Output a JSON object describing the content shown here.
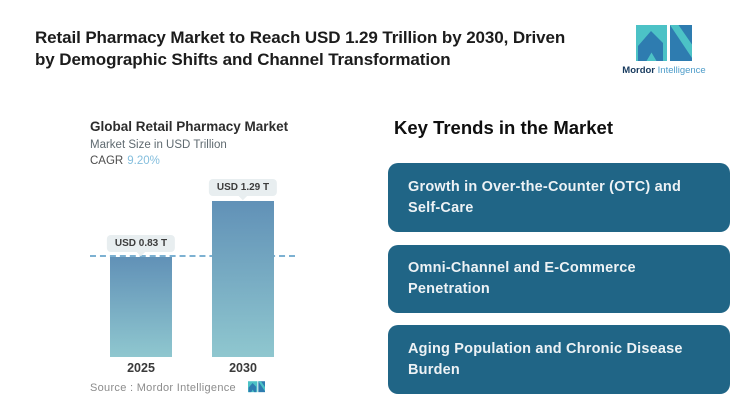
{
  "header": {
    "title_line1": "Retail Pharmacy Market to Reach USD 1.29 Trillion by 2030, Driven",
    "title_line2": "by Demographic Shifts and Channel Transformation",
    "brand": {
      "name_bold": "Mordor",
      "name_light": "Intelligence"
    }
  },
  "chart": {
    "title": "Global Retail Pharmacy Market",
    "subtitle": "Market Size in USD Trillion",
    "cagr_label": "CAGR",
    "source_label": "Source :  Mordor Intelligence"
  },
  "chart_data": {
    "type": "bar",
    "title": "Global Retail Pharmacy Market",
    "subtitle": "Market Size in USD Trillion",
    "cagr": "9.20%",
    "unit": "USD Trillion",
    "categories": [
      "2025",
      "2030"
    ],
    "values": [
      0.83,
      1.29
    ],
    "value_labels": [
      "USD 0.83 T",
      "USD 1.29 T"
    ],
    "ylim": [
      0,
      1.4
    ],
    "grid": false,
    "legend": false,
    "reference_line": {
      "at_value": 0.83,
      "style": "dashed"
    },
    "colors": {
      "bar_gradient_top": "#6191b7",
      "bar_gradient_bottom": "#8fc7cf",
      "dashed_line": "#7cb1d2",
      "value_pill_bg": "#e8eef0",
      "cagr_value": "#84bedd"
    }
  },
  "trends": {
    "heading": "Key Trends in the Market",
    "items": [
      "Growth in Over-the-Counter (OTC) and Self-Care",
      "Omni-Channel and E-Commerce Penetration",
      "Aging Population and Chronic Disease Burden"
    ],
    "box_color": "#206586"
  },
  "brand_colors": {
    "teal": "#4cc2c6",
    "blue": "#2e7cb0"
  }
}
